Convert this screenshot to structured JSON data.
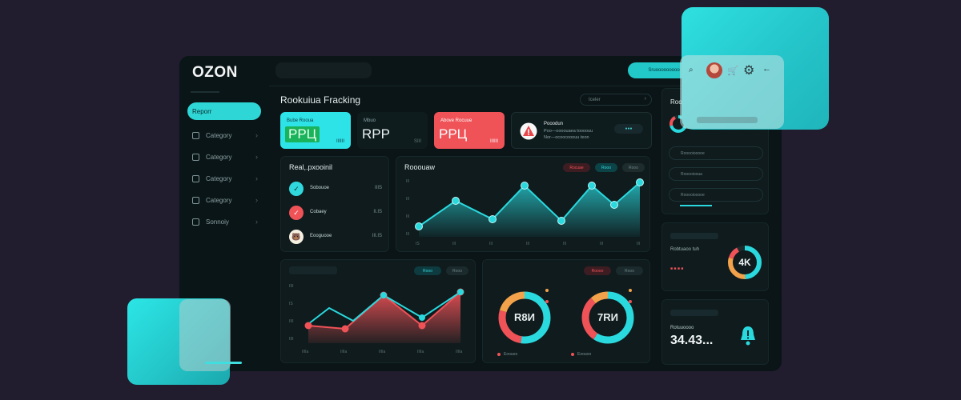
{
  "brand": {
    "logo": "OZON"
  },
  "sidebar": {
    "items": [
      {
        "label": "Reporr",
        "active": true
      },
      {
        "label": "Category"
      },
      {
        "label": "Category"
      },
      {
        "label": "Category"
      },
      {
        "label": "Category"
      },
      {
        "label": "Sonnoiy"
      }
    ]
  },
  "header": {
    "title": "Rookuiua Fracking",
    "period": "Iceler"
  },
  "kpis": [
    {
      "label": "Bube Rooua",
      "value": "PPЦ",
      "sub": "IIIIII"
    },
    {
      "label": "Mbuo",
      "value": "RPP",
      "sub": "SIII"
    },
    {
      "label": "Above Rocuue",
      "value": "PPЦ",
      "sub": "IIIIII"
    }
  ],
  "alert_card": {
    "title": "Pooodun",
    "line1": "Poo—oooouaea toooouu",
    "line2": "Nor—ocoocooouu teon"
  },
  "real_card": {
    "title": "Real,.pxooinil",
    "rows": [
      {
        "name": "Sobouoe",
        "value": "IIIS"
      },
      {
        "name": "Cobaey",
        "value": "II.IS"
      },
      {
        "name": "Eooguooe",
        "value": "III.IS"
      }
    ]
  },
  "chart_big": {
    "title": "Rooouaw",
    "chips": [
      "Rocuae",
      "Rooo",
      "Rooo"
    ],
    "y_ticks": [
      "III",
      "III",
      "III",
      "III"
    ],
    "x_ticks": [
      "IS",
      "III",
      "III",
      "III",
      "III",
      "III",
      "III"
    ]
  },
  "chart_left": {
    "chips": [
      "Rooo",
      "Rooo"
    ],
    "y_ticks": [
      "IIII",
      "IS",
      "IIII",
      "IIII"
    ],
    "x_ticks": [
      "IIIIa",
      "IIIIa",
      "IIIIa",
      "IIIIa",
      "IIIIa"
    ]
  },
  "donuts": {
    "chips": [
      "Roooo",
      "Rooo"
    ],
    "left_center": "R8И",
    "right_center": "7RИ",
    "left_legend": "Eoouoo",
    "right_legend": "Eoouoo"
  },
  "right_panel": {
    "title": "Rooooou",
    "items": [
      "Rooooiooooe",
      "Rooooiooua",
      "Rooooiooooe"
    ],
    "metric_4k": "4K",
    "metric_4k_label": "Robtuaoo tuh",
    "alert_label": "Rotuuoooo",
    "alert_value": "34.43..."
  },
  "topbar": {
    "button_label": "Sruooooooooo"
  },
  "colors": {
    "accent": "#2fd6d6",
    "danger": "#ef5257",
    "bg": "#0b1416",
    "page": "#211d2e"
  },
  "icons": [
    "warning-icon",
    "gear-icon",
    "cart-icon",
    "bell-alert-icon",
    "check-icon"
  ]
}
